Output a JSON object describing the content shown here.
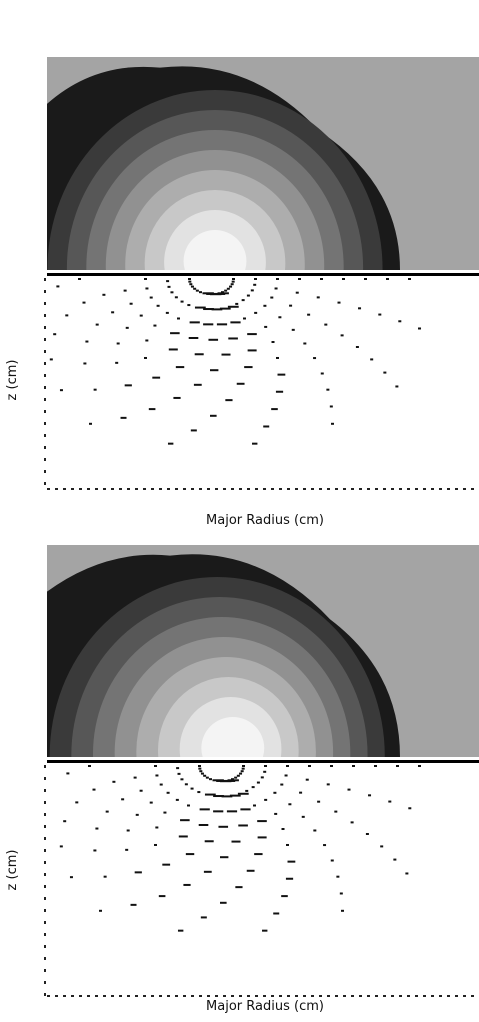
{
  "panels": [
    {
      "x_label": "Major Radius (cm)",
      "y_label": "z (cm)"
    },
    {
      "x_label": "Major Radius (cm)",
      "y_label": "z (cm)"
    }
  ]
}
